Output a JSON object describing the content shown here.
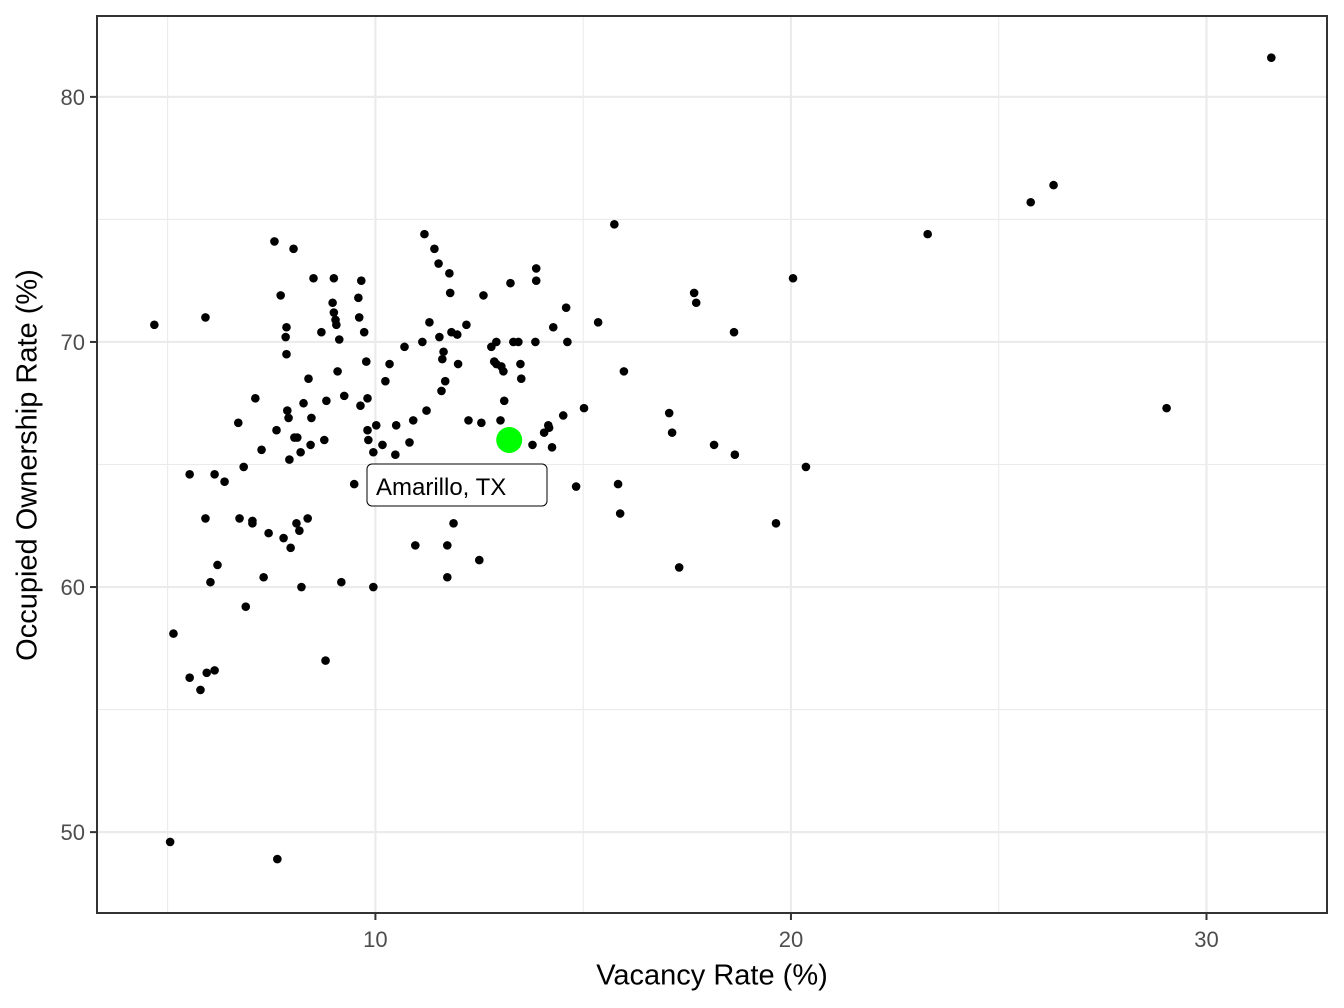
{
  "chart_data": {
    "type": "scatter",
    "title": "",
    "xlabel": "Vacancy Rate (%)",
    "ylabel": "Occupied Ownership Rate (%)",
    "xlim": [
      3.3,
      32.9
    ],
    "ylim": [
      46.7,
      83.3
    ],
    "xticks": [
      10,
      20,
      30
    ],
    "yticks": [
      50,
      60,
      70,
      80
    ],
    "grid": true,
    "legend": null,
    "highlight": {
      "label": "Amarillo, TX",
      "x": 13.22,
      "y": 66.0,
      "color": "#00FF00"
    },
    "point_color": "#000000",
    "x": [
      4.68,
      5.06,
      5.14,
      5.53,
      5.53,
      5.79,
      5.91,
      5.91,
      5.94,
      6.03,
      6.13,
      6.13,
      6.2,
      6.37,
      6.7,
      6.73,
      6.83,
      6.88,
      7.04,
      7.04,
      7.11,
      7.26,
      7.31,
      7.43,
      7.57,
      7.62,
      7.64,
      7.72,
      7.79,
      7.84,
      7.86,
      7.86,
      7.88,
      7.91,
      7.93,
      7.96,
      8.03,
      8.05,
      8.1,
      8.12,
      8.17,
      8.2,
      8.22,
      8.27,
      8.37,
      8.39,
      8.44,
      8.46,
      8.51,
      8.7,
      8.77,
      8.8,
      8.82,
      8.97,
      9.0,
      9.0,
      9.04,
      9.06,
      9.09,
      9.13,
      9.18,
      9.25,
      9.49,
      9.59,
      9.61,
      9.64,
      9.66,
      9.73,
      9.78,
      9.81,
      9.81,
      9.83,
      9.95,
      9.95,
      10.02,
      10.17,
      10.24,
      10.34,
      10.48,
      10.5,
      10.7,
      10.82,
      10.91,
      10.96,
      11.13,
      11.18,
      11.23,
      11.3,
      11.42,
      11.52,
      11.54,
      11.59,
      11.61,
      11.64,
      11.68,
      11.73,
      11.73,
      11.78,
      11.8,
      11.83,
      11.88,
      11.97,
      11.99,
      12.19,
      12.24,
      12.5,
      12.55,
      12.6,
      12.79,
      12.86,
      12.91,
      12.91,
      13.01,
      13.03,
      13.08,
      13.1,
      13.25,
      13.32,
      13.44,
      13.49,
      13.51,
      13.78,
      13.85,
      13.87,
      13.87,
      14.06,
      14.16,
      14.18,
      14.25,
      14.28,
      14.52,
      14.59,
      14.62,
      14.83,
      15.02,
      15.36,
      15.75,
      15.84,
      15.89,
      15.98,
      17.07,
      17.14,
      17.31,
      17.67,
      17.72,
      18.15,
      18.63,
      18.65,
      19.64,
      20.05,
      20.36,
      23.29,
      25.77,
      26.32,
      29.04,
      31.56
    ],
    "y": [
      70.7,
      49.6,
      58.1,
      64.6,
      56.3,
      55.8,
      71.0,
      62.8,
      56.5,
      60.2,
      64.6,
      56.6,
      60.9,
      64.3,
      66.7,
      62.8,
      64.9,
      59.2,
      62.6,
      62.7,
      67.7,
      65.6,
      60.4,
      62.2,
      74.1,
      66.4,
      48.9,
      71.9,
      62.0,
      70.2,
      70.6,
      69.5,
      67.2,
      66.9,
      65.2,
      61.6,
      73.8,
      66.1,
      62.6,
      66.1,
      62.3,
      65.5,
      60.0,
      67.5,
      62.8,
      68.5,
      65.8,
      66.9,
      72.6,
      70.4,
      66.0,
      57.0,
      67.6,
      71.6,
      72.6,
      71.2,
      70.9,
      70.7,
      68.8,
      70.1,
      60.2,
      67.8,
      64.2,
      71.8,
      71.0,
      67.4,
      72.5,
      70.4,
      69.2,
      67.7,
      66.4,
      66.0,
      65.5,
      60.0,
      66.6,
      65.8,
      68.4,
      69.1,
      65.4,
      66.6,
      69.8,
      65.9,
      66.8,
      61.7,
      70.0,
      74.4,
      67.2,
      70.8,
      73.8,
      73.2,
      70.2,
      68.0,
      69.3,
      69.6,
      68.4,
      61.7,
      60.4,
      72.8,
      72.0,
      70.4,
      62.6,
      70.3,
      69.1,
      70.7,
      66.8,
      61.1,
      66.7,
      71.9,
      69.8,
      69.2,
      70.0,
      69.1,
      66.8,
      69.0,
      68.8,
      67.6,
      72.4,
      70.0,
      70.0,
      69.1,
      68.5,
      65.8,
      70.0,
      72.5,
      73.0,
      66.3,
      66.6,
      66.5,
      65.7,
      70.6,
      67.0,
      71.4,
      70.0,
      64.1,
      67.3,
      70.8,
      74.8,
      64.2,
      63.0,
      68.8,
      67.1,
      66.3,
      60.8,
      72.0,
      71.6,
      65.8,
      70.4,
      65.4,
      62.6,
      72.6,
      64.9,
      74.4,
      75.7,
      76.4,
      67.3,
      81.6
    ]
  }
}
